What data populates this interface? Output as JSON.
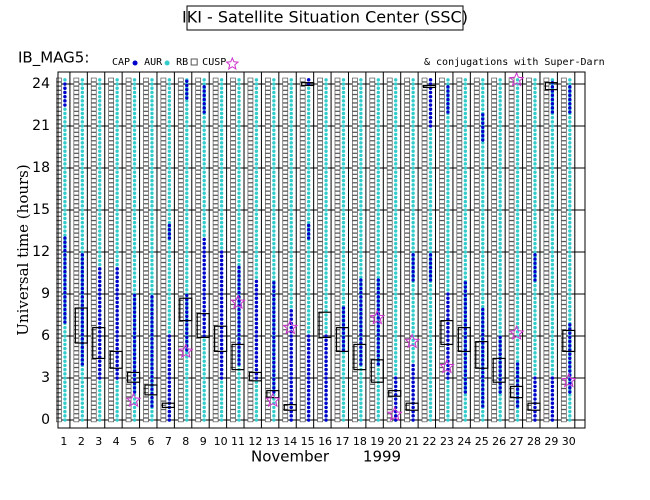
{
  "chart_data": {
    "type": "orbit-strip",
    "title": "IKI - Satellite Situation Center (SSC)",
    "satellite": "IB_MAG5:",
    "note": "& conjugations with Super-Darn",
    "ylabel": "Universal time (hours)",
    "xlabel": "November",
    "year": "1999",
    "x": [
      1,
      2,
      3,
      4,
      5,
      6,
      7,
      8,
      9,
      10,
      11,
      12,
      13,
      14,
      15,
      16,
      17,
      18,
      19,
      20,
      21,
      22,
      23,
      24,
      25,
      26,
      27,
      28,
      29,
      30
    ],
    "xlim": [
      0.66,
      30.93
    ],
    "xticks": [
      1,
      2,
      3,
      4,
      5,
      6,
      7,
      8,
      9,
      10,
      11,
      12,
      13,
      14,
      15,
      16,
      17,
      18,
      19,
      20,
      21,
      22,
      23,
      24,
      25,
      26,
      27,
      28,
      29,
      30
    ],
    "ylim": [
      -0.57,
      24.86
    ],
    "yticks": [
      0,
      3,
      6,
      9,
      12,
      15,
      18,
      21,
      24
    ],
    "grid": true,
    "series": [
      {
        "name": "RB",
        "color": "#555555",
        "marker": "square",
        "intervals": [
          [
            [
              0,
              24.3
            ]
          ],
          [
            [
              0,
              24.3
            ]
          ],
          [
            [
              0,
              24.3
            ]
          ],
          [
            [
              0,
              24.3
            ]
          ],
          [
            [
              0,
              24.3
            ]
          ],
          [
            [
              0,
              24.3
            ]
          ],
          [
            [
              0,
              24.3
            ]
          ],
          [
            [
              0,
              24.3
            ]
          ],
          [
            [
              0,
              24.3
            ]
          ],
          [
            [
              0,
              24.3
            ]
          ],
          [
            [
              0,
              24.3
            ]
          ],
          [
            [
              0,
              24.3
            ]
          ],
          [
            [
              0,
              24.3
            ]
          ],
          [
            [
              0,
              24.3
            ]
          ],
          [
            [
              0,
              24.3
            ]
          ],
          [
            [
              0,
              24.3
            ]
          ],
          [
            [
              0,
              24.3
            ]
          ],
          [
            [
              0,
              24.3
            ]
          ],
          [
            [
              0,
              24.3
            ]
          ],
          [
            [
              0,
              24.3
            ]
          ],
          [
            [
              0,
              24.3
            ]
          ],
          [
            [
              0,
              24.3
            ]
          ],
          [
            [
              0,
              24.3
            ]
          ],
          [
            [
              0,
              24.3
            ]
          ],
          [
            [
              0,
              24.3
            ]
          ],
          [
            [
              0,
              24.3
            ]
          ],
          [
            [
              0,
              24.3
            ]
          ],
          [
            [
              0,
              24.3
            ]
          ],
          [
            [
              0,
              24.3
            ]
          ],
          [
            [
              0,
              24.3
            ]
          ]
        ]
      },
      {
        "name": "AUR",
        "color": "#33cccc",
        "marker": "dot",
        "intervals": [
          [
            [
              0,
              24.3
            ]
          ],
          [
            [
              0,
              24.3
            ]
          ],
          [
            [
              0,
              24.3
            ]
          ],
          [
            [
              0,
              24.3
            ]
          ],
          [
            [
              0,
              24.3
            ]
          ],
          [
            [
              0,
              24.3
            ]
          ],
          [
            [
              0,
              24.3
            ]
          ],
          [
            [
              0,
              24.3
            ]
          ],
          [
            [
              0,
              24.3
            ]
          ],
          [
            [
              0,
              24.3
            ]
          ],
          [
            [
              0,
              24.3
            ]
          ],
          [
            [
              0,
              24.3
            ]
          ],
          [
            [
              0,
              24.3
            ]
          ],
          [
            [
              0,
              24.3
            ]
          ],
          [
            [
              0,
              24.3
            ]
          ],
          [
            [
              0,
              24.3
            ]
          ],
          [
            [
              0,
              24.3
            ]
          ],
          [
            [
              0,
              24.3
            ]
          ],
          [
            [
              0,
              24.3
            ]
          ],
          [
            [
              0,
              24.3
            ]
          ],
          [
            [
              0,
              24.3
            ]
          ],
          [
            [
              0,
              24.3
            ]
          ],
          [
            [
              0,
              24.3
            ]
          ],
          [
            [
              0,
              24.3
            ]
          ],
          [
            [
              0,
              24.3
            ]
          ],
          [
            [
              0,
              24.3
            ]
          ],
          [
            [
              0,
              24.3
            ]
          ],
          [
            [
              0,
              24.3
            ]
          ],
          [
            [
              0,
              24.3
            ]
          ],
          [
            [
              0,
              24.3
            ]
          ]
        ]
      },
      {
        "name": "CAP",
        "color": "#0000cc",
        "marker": "dot",
        "intervals": [
          [
            [
              7,
              13
            ],
            [
              22.5,
              24
            ]
          ],
          [
            [
              4,
              12
            ]
          ],
          [
            [
              3,
              11
            ]
          ],
          [
            [
              3,
              11
            ]
          ],
          [
            [
              2,
              9
            ]
          ],
          [
            [
              1,
              9
            ]
          ],
          [
            [
              0,
              6
            ],
            [
              13,
              14
            ]
          ],
          [
            [
              5,
              9
            ],
            [
              23,
              24.3
            ]
          ],
          [
            [
              6,
              13
            ],
            [
              22,
              24
            ]
          ],
          [
            [
              3,
              12
            ]
          ],
          [
            [
              4,
              11
            ]
          ],
          [
            [
              3,
              10
            ]
          ],
          [
            [
              2,
              10
            ]
          ],
          [
            [
              0,
              8
            ]
          ],
          [
            [
              0,
              6
            ],
            [
              13,
              14
            ],
            [
              24,
              24.3
            ]
          ],
          [
            [
              0,
              6
            ]
          ],
          [
            [
              5,
              8
            ]
          ],
          [
            [
              4,
              10
            ]
          ],
          [
            [
              4,
              10
            ]
          ],
          [
            [
              0,
              3
            ]
          ],
          [
            [
              0,
              4
            ],
            [
              10,
              12
            ]
          ],
          [
            [
              21,
              24.3
            ],
            [
              10,
              12
            ]
          ],
          [
            [
              3,
              9
            ],
            [
              22,
              24
            ]
          ],
          [
            [
              2,
              10
            ]
          ],
          [
            [
              1,
              8
            ],
            [
              20,
              22
            ]
          ],
          [
            [
              2,
              6
            ]
          ],
          [
            [
              1,
              4
            ]
          ],
          [
            [
              0,
              3
            ],
            [
              10,
              12
            ]
          ],
          [
            [
              0,
              3
            ],
            [
              22,
              24.3
            ]
          ],
          [
            [
              2,
              7
            ],
            [
              22,
              24
            ]
          ]
        ]
      }
    ],
    "cusp": {
      "name": "CUSP",
      "color": "#cc33cc",
      "days": [
        5,
        8,
        11,
        13,
        14,
        19,
        20,
        21,
        23,
        27,
        27,
        30
      ],
      "times": [
        1.4,
        4.9,
        8.4,
        1.4,
        6.6,
        7.3,
        0.4,
        5.6,
        3.8,
        24.3,
        6.2,
        2.8
      ]
    },
    "conjugations": [
      null,
      [
        5.5,
        8
      ],
      [
        4.4,
        6.6
      ],
      [
        3.7,
        4.9
      ],
      [
        2.7,
        3.4
      ],
      [
        1.8,
        2.5
      ],
      [
        0.9,
        1.2
      ],
      [
        7.1,
        8.7
      ],
      [
        5.9,
        7.6
      ],
      [
        4.9,
        6.7
      ],
      [
        3.6,
        5.4
      ],
      [
        2.8,
        3.4
      ],
      [
        1.6,
        2.1
      ],
      [
        0.7,
        1.1
      ],
      [
        23.9,
        24.1
      ],
      [
        5.9,
        7.7
      ],
      [
        4.9,
        6.6
      ],
      [
        3.6,
        5.4
      ],
      [
        2.7,
        4.3
      ],
      [
        1.7,
        2.1
      ],
      [
        0.7,
        1.2
      ],
      [
        23.8,
        23.9
      ],
      [
        5.4,
        7.1
      ],
      [
        4.9,
        6.6
      ],
      [
        3.7,
        5.6
      ],
      [
        2.7,
        4.4
      ],
      [
        1.6,
        2.4
      ],
      [
        0.7,
        1.2
      ],
      [
        23.6,
        24.1
      ],
      [
        4.9,
        6.4
      ]
    ]
  }
}
